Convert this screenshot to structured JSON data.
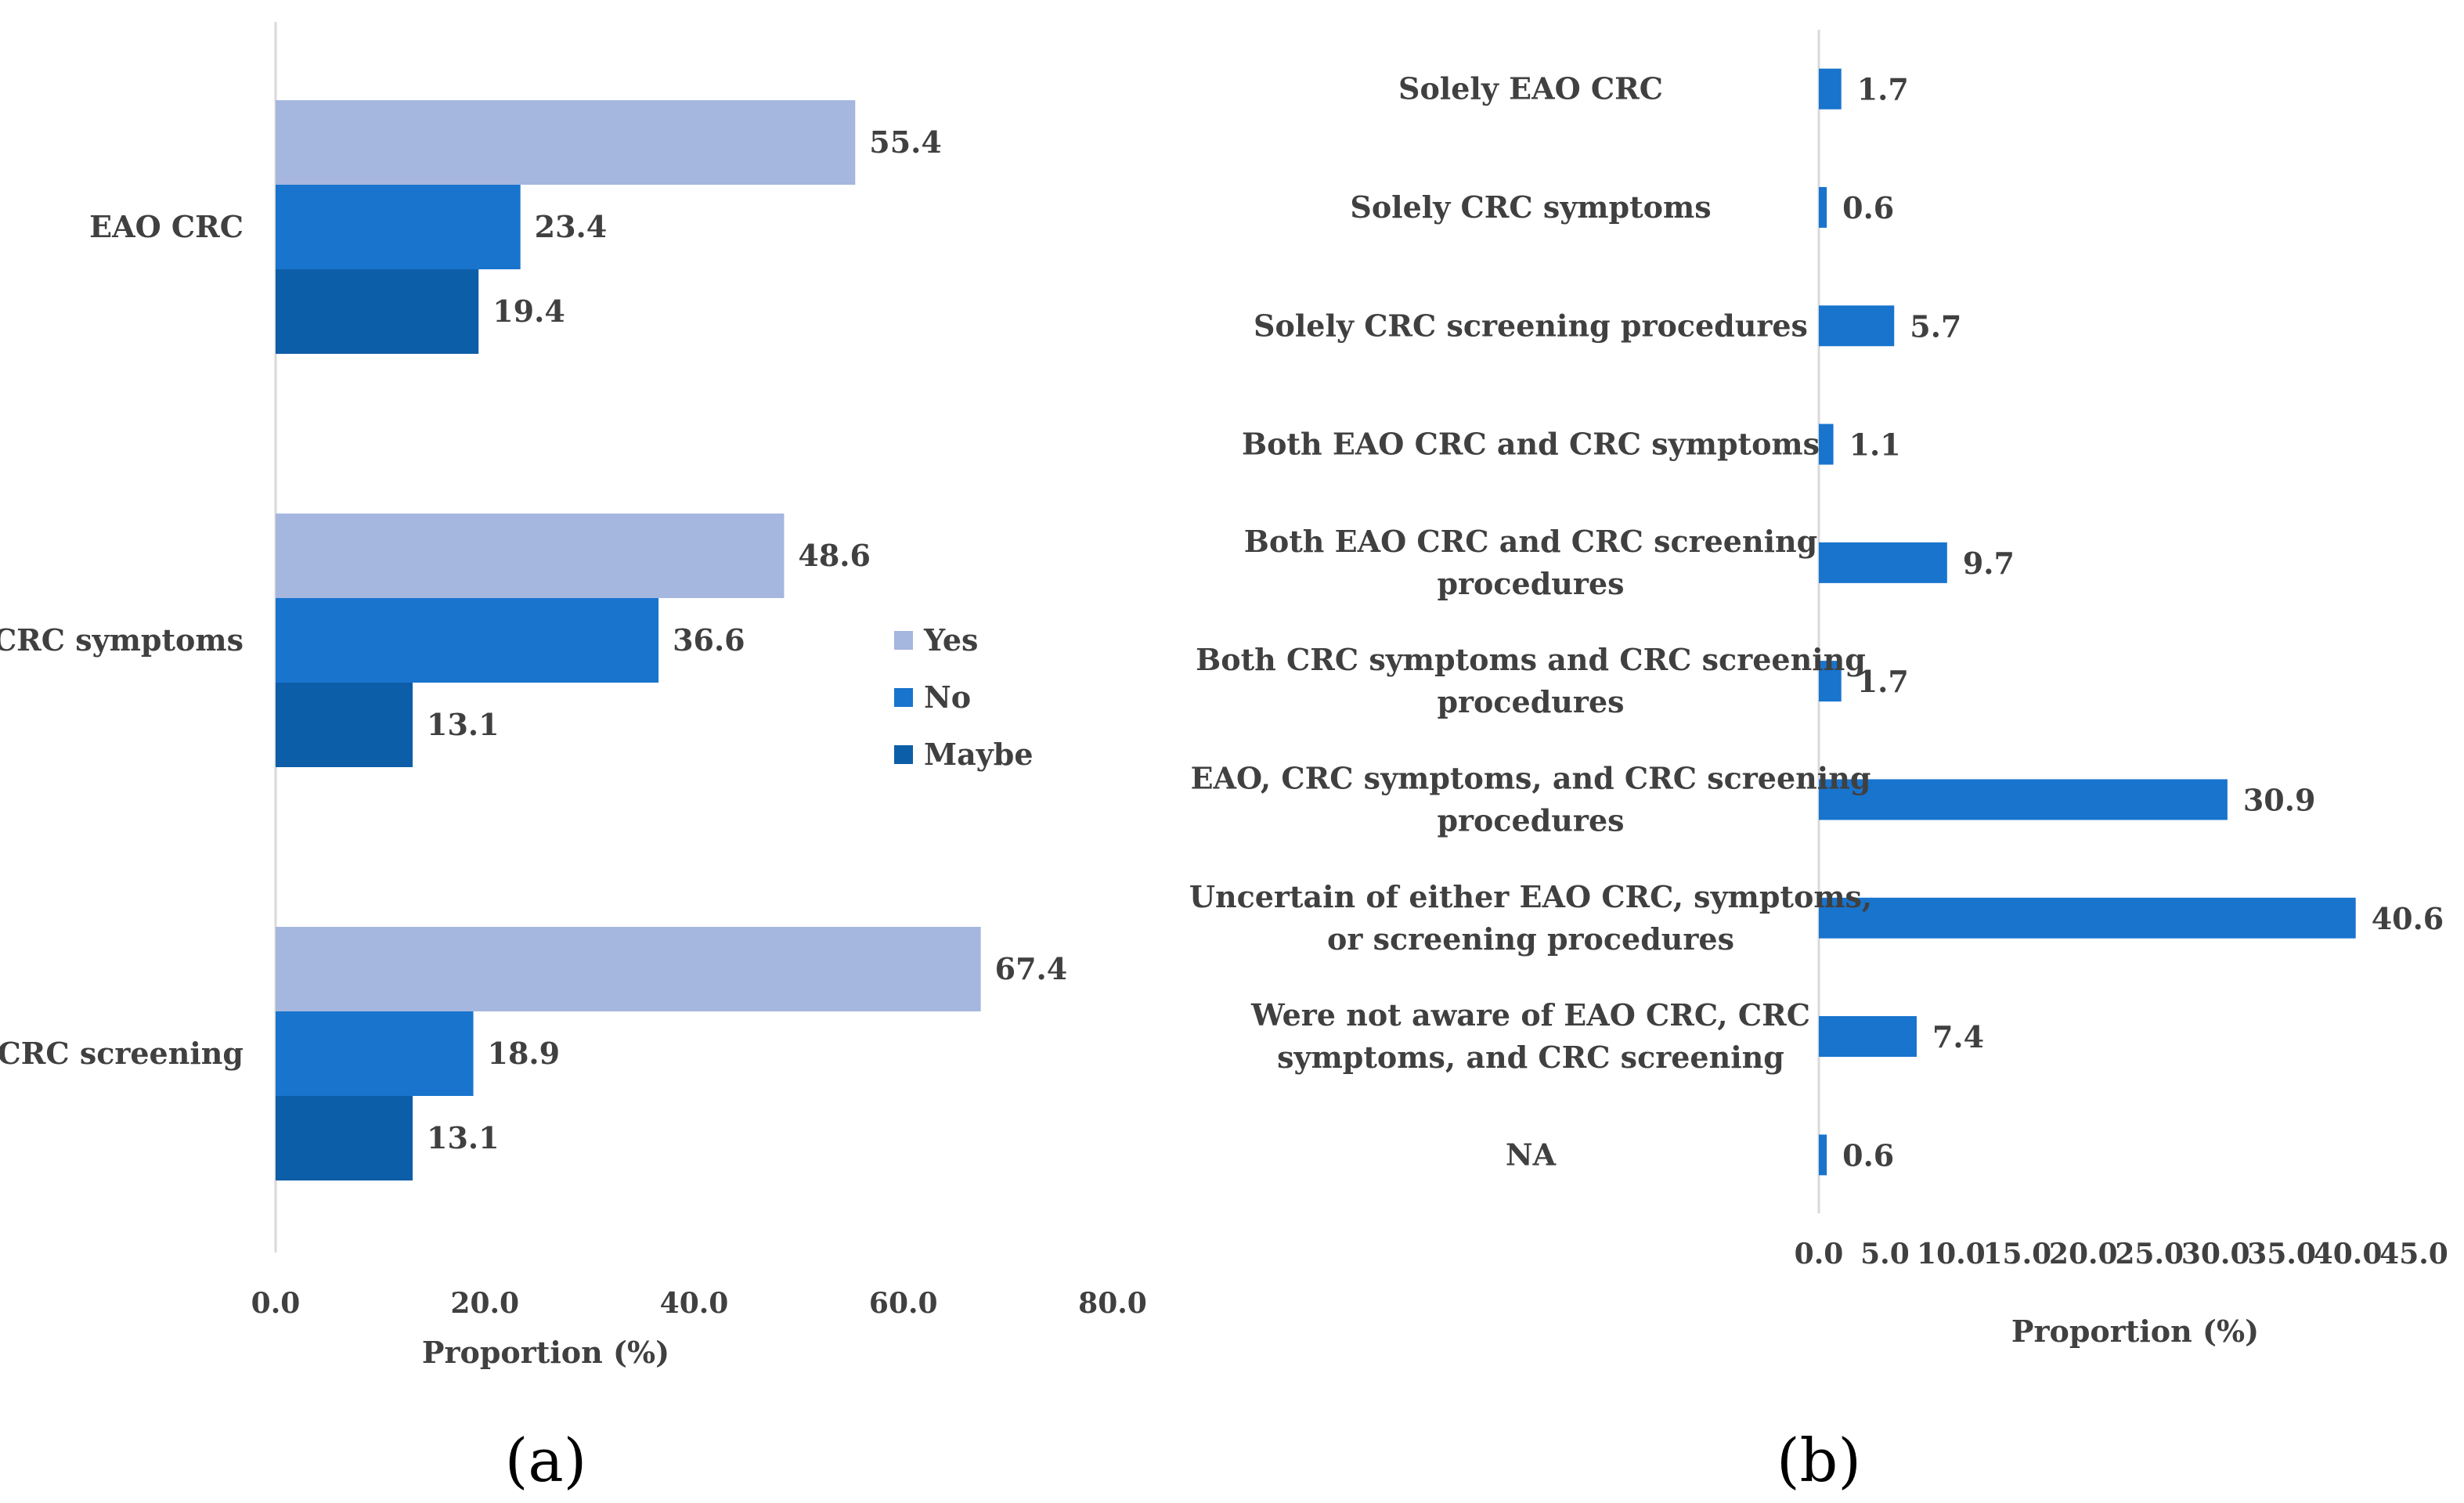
{
  "colors": {
    "yes": "#a5b6df",
    "no": "#1874cd",
    "maybe": "#0d5ea8",
    "axis": "#d9d9d9",
    "text": "#404040"
  },
  "chart_data": [
    {
      "type": "bar",
      "orientation": "horizontal",
      "panel_label": "(a)",
      "categories": [
        "EAO CRC",
        "CRC symptoms",
        "CRC screening"
      ],
      "series": [
        {
          "name": "Yes",
          "values": [
            55.4,
            48.6,
            67.4
          ]
        },
        {
          "name": "No",
          "values": [
            23.4,
            36.6,
            18.9
          ]
        },
        {
          "name": "Maybe",
          "values": [
            19.4,
            13.1,
            13.1
          ]
        }
      ],
      "value_labels": [
        [
          "55.4",
          "48.6",
          "67.4"
        ],
        [
          "23.4",
          "36.6",
          "18.9"
        ],
        [
          "19.4",
          "13.1",
          "13.1"
        ]
      ],
      "xlabel": "Proportion (%)",
      "xlim": [
        0,
        80
      ],
      "xticks": [
        "0.0",
        "20.0",
        "40.0",
        "60.0",
        "80.0"
      ],
      "legend": "right",
      "grid": false
    },
    {
      "type": "bar",
      "orientation": "horizontal",
      "panel_label": "(b)",
      "categories": [
        [
          "Solely EAO CRC"
        ],
        [
          "Solely CRC symptoms"
        ],
        [
          "Solely CRC screening procedures"
        ],
        [
          "Both EAO CRC and CRC symptoms"
        ],
        [
          "Both EAO CRC and CRC screening",
          "procedures"
        ],
        [
          "Both CRC symptoms and CRC screening",
          "procedures"
        ],
        [
          "EAO, CRC symptoms, and CRC screening",
          "procedures"
        ],
        [
          "Uncertain of either EAO CRC, symptoms,",
          "or screening procedures"
        ],
        [
          "Were not aware of EAO CRC, CRC",
          "symptoms, and CRC screening"
        ],
        [
          "NA"
        ]
      ],
      "values": [
        1.7,
        0.6,
        5.7,
        1.1,
        9.7,
        1.7,
        30.9,
        40.6,
        7.4,
        0.6
      ],
      "value_labels": [
        "1.7",
        "0.6",
        "5.7",
        "1.1",
        "9.7",
        "1.7",
        "30.9",
        "40.6",
        "7.4",
        "0.6"
      ],
      "xlabel": "Proportion (%)",
      "xlim": [
        0,
        45
      ],
      "xticks": [
        "0.0",
        "5.0",
        "10.0",
        "15.0",
        "20.0",
        "25.0",
        "30.0",
        "35.0",
        "40.0",
        "45.0"
      ],
      "grid": false
    }
  ]
}
